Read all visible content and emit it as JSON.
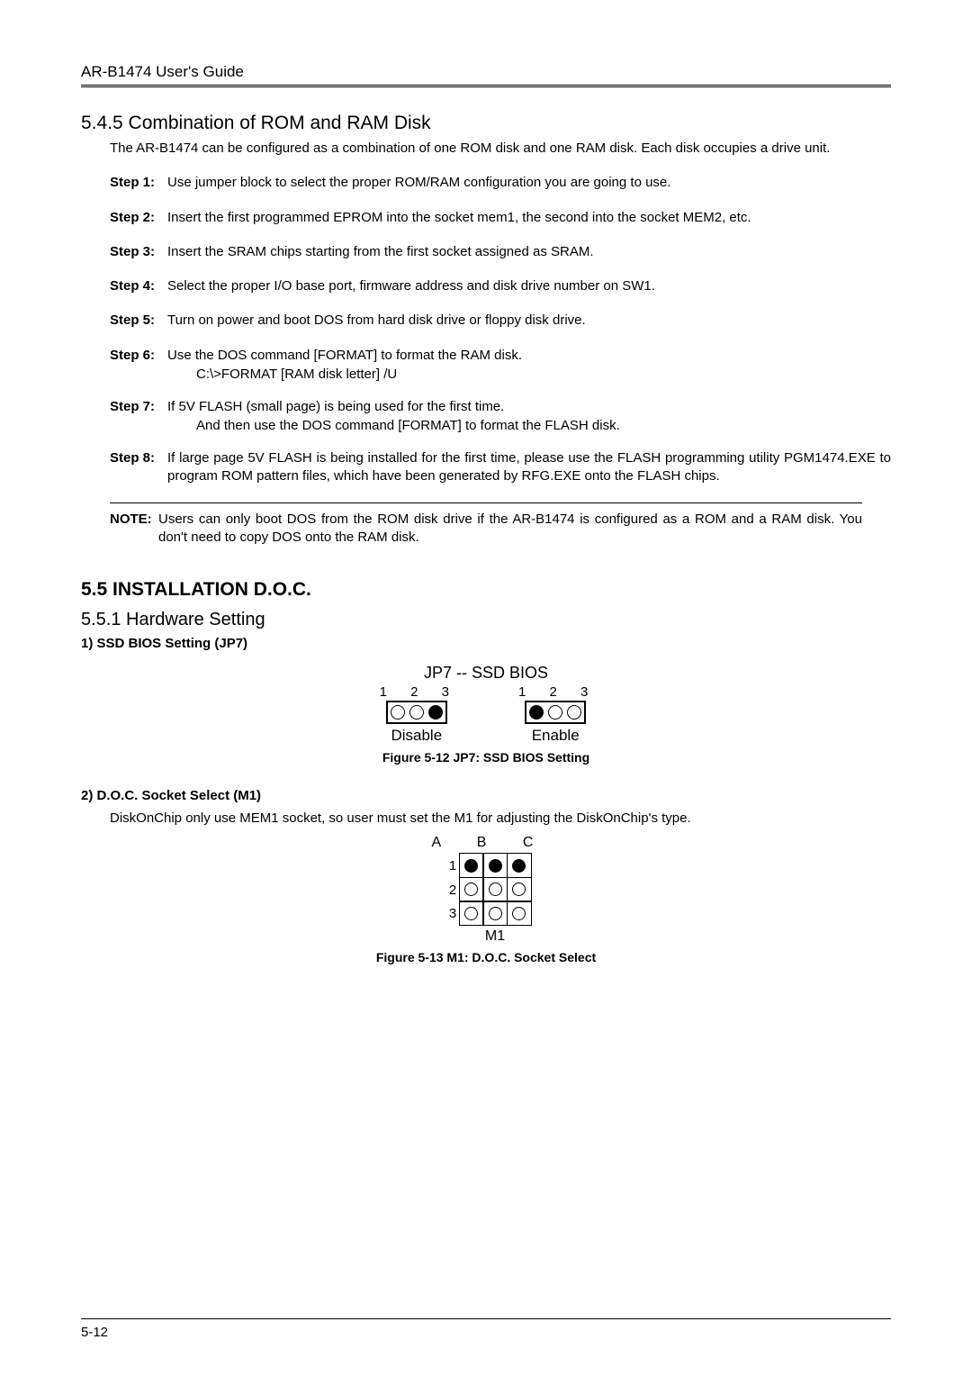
{
  "header": "AR-B1474 User's Guide",
  "sec545": {
    "title": "5.4.5 Combination of ROM and RAM Disk",
    "intro": "The AR-B1474 can be configured as a combination of one ROM disk and one RAM disk.  Each disk occupies a drive unit.",
    "steps": [
      {
        "label": "Step 1:",
        "text": "Use jumper block to select the proper ROM/RAM configuration you are going to use."
      },
      {
        "label": "Step 2:",
        "text": "Insert the first programmed EPROM into the socket mem1, the second into the socket MEM2, etc."
      },
      {
        "label": "Step 3:",
        "text": "Insert the SRAM chips starting from the first socket assigned as SRAM."
      },
      {
        "label": "Step 4:",
        "text": "Select the proper I/O base port, firmware address and disk drive number on SW1."
      },
      {
        "label": "Step 5:",
        "text": "Turn on power and boot DOS from hard disk drive or floppy disk drive."
      },
      {
        "label": "Step 6:",
        "text": "Use the DOS command [FORMAT] to format the RAM disk.",
        "extra": "C:\\>FORMAT [RAM disk letter] /U"
      },
      {
        "label": "Step 7:",
        "text": "If 5V FLASH (small page) is being used for the first time.",
        "extra": "And then use the DOS command [FORMAT] to format the FLASH disk."
      },
      {
        "label": "Step 8:",
        "text": "If large page 5V FLASH is being installed for the first time, please use the FLASH programming utility PGM1474.EXE to program ROM pattern files, which have been generated by RFG.EXE onto the FLASH chips."
      }
    ],
    "note_label": "NOTE:",
    "note_text": "Users can only boot DOS from the ROM disk drive if the AR-B1474 is configured as a ROM and a RAM disk.  You don't need to copy DOS onto the RAM disk."
  },
  "sec55": {
    "title": "5.5 INSTALLATION D.O.C.",
    "sub1_title": "5.5.1 Hardware Setting",
    "setting1_title": "1) SSD BIOS Setting (JP7)",
    "jp7": {
      "title": "JP7 -- SSD BIOS",
      "nums": "1  2  3",
      "disable_label": "Disable",
      "enable_label": "Enable",
      "disable_pins": [
        false,
        false,
        true
      ],
      "enable_pins": [
        true,
        false,
        false
      ],
      "caption": "Figure 5-12 JP7: SSD BIOS Setting"
    },
    "setting2_title": "2) D.O.C. Socket Select (M1)",
    "setting2_desc": "DiskOnChip only use MEM1 socket, so user must set the M1 for adjusting the DiskOnChip's type.",
    "m1": {
      "cols": "A   B   C",
      "rows": [
        "1",
        "2",
        "3"
      ],
      "grid": [
        [
          true,
          true,
          true
        ],
        [
          false,
          false,
          false
        ],
        [
          false,
          false,
          false
        ]
      ],
      "label": "M1",
      "caption": "Figure 5-13 M1: D.O.C. Socket Select"
    }
  },
  "footer": "5-12"
}
